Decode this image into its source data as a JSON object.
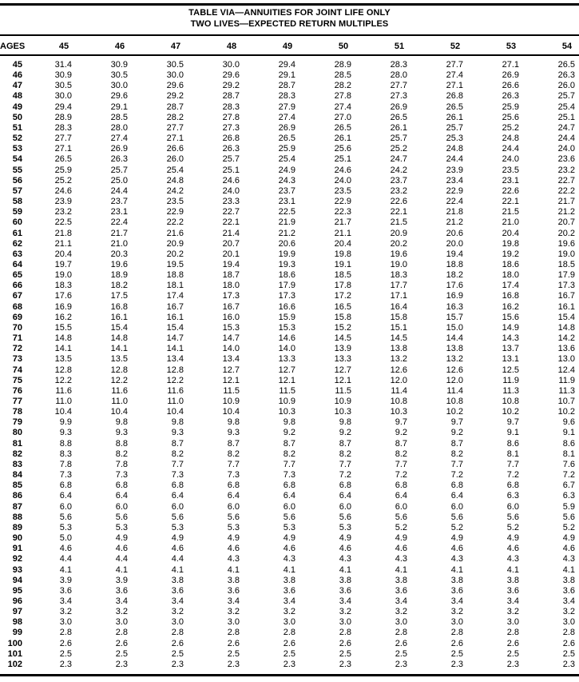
{
  "title": {
    "line1": "TABLE VIA—ANNUITIES FOR JOINT LIFE ONLY",
    "line2": "TWO LIVES—EXPECTED RETURN MULTIPLES"
  },
  "header": {
    "ages_label": "AGES",
    "columns": [
      "45",
      "46",
      "47",
      "48",
      "49",
      "50",
      "51",
      "52",
      "53",
      "54"
    ]
  },
  "rows": [
    {
      "age": "45",
      "values": [
        "31.4",
        "30.9",
        "30.5",
        "30.0",
        "29.4",
        "28.9",
        "28.3",
        "27.7",
        "27.1",
        "26.5"
      ]
    },
    {
      "age": "46",
      "values": [
        "30.9",
        "30.5",
        "30.0",
        "29.6",
        "29.1",
        "28.5",
        "28.0",
        "27.4",
        "26.9",
        "26.3"
      ]
    },
    {
      "age": "47",
      "values": [
        "30.5",
        "30.0",
        "29.6",
        "29.2",
        "28.7",
        "28.2",
        "27.7",
        "27.1",
        "26.6",
        "26.0"
      ]
    },
    {
      "age": "48",
      "values": [
        "30.0",
        "29.6",
        "29.2",
        "28.7",
        "28.3",
        "27.8",
        "27.3",
        "26.8",
        "26.3",
        "25.7"
      ]
    },
    {
      "age": "49",
      "values": [
        "29.4",
        "29.1",
        "28.7",
        "28.3",
        "27.9",
        "27.4",
        "26.9",
        "26.5",
        "25.9",
        "25.4"
      ]
    },
    {
      "age": "50",
      "values": [
        "28.9",
        "28.5",
        "28.2",
        "27.8",
        "27.4",
        "27.0",
        "26.5",
        "26.1",
        "25.6",
        "25.1"
      ]
    },
    {
      "age": "51",
      "values": [
        "28.3",
        "28.0",
        "27.7",
        "27.3",
        "26.9",
        "26.5",
        "26.1",
        "25.7",
        "25.2",
        "24.7"
      ]
    },
    {
      "age": "52",
      "values": [
        "27.7",
        "27.4",
        "27.1",
        "26.8",
        "26.5",
        "26.1",
        "25.7",
        "25.3",
        "24.8",
        "24.4"
      ]
    },
    {
      "age": "53",
      "values": [
        "27.1",
        "26.9",
        "26.6",
        "26.3",
        "25.9",
        "25.6",
        "25.2",
        "24.8",
        "24.4",
        "24.0"
      ]
    },
    {
      "age": "54",
      "values": [
        "26.5",
        "26.3",
        "26.0",
        "25.7",
        "25.4",
        "25.1",
        "24.7",
        "24.4",
        "24.0",
        "23.6"
      ]
    },
    {
      "age": "55",
      "values": [
        "25.9",
        "25.7",
        "25.4",
        "25.1",
        "24.9",
        "24.6",
        "24.2",
        "23.9",
        "23.5",
        "23.2"
      ]
    },
    {
      "age": "56",
      "values": [
        "25.2",
        "25.0",
        "24.8",
        "24.6",
        "24.3",
        "24.0",
        "23.7",
        "23.4",
        "23.1",
        "22.7"
      ]
    },
    {
      "age": "57",
      "values": [
        "24.6",
        "24.4",
        "24.2",
        "24.0",
        "23.7",
        "23.5",
        "23.2",
        "22.9",
        "22.6",
        "22.2"
      ]
    },
    {
      "age": "58",
      "values": [
        "23.9",
        "23.7",
        "23.5",
        "23.3",
        "23.1",
        "22.9",
        "22.6",
        "22.4",
        "22.1",
        "21.7"
      ]
    },
    {
      "age": "59",
      "values": [
        "23.2",
        "23.1",
        "22.9",
        "22.7",
        "22.5",
        "22.3",
        "22.1",
        "21.8",
        "21.5",
        "21.2"
      ]
    },
    {
      "age": "60",
      "values": [
        "22.5",
        "22.4",
        "22.2",
        "22.1",
        "21.9",
        "21.7",
        "21.5",
        "21.2",
        "21.0",
        "20.7"
      ]
    },
    {
      "age": "61",
      "values": [
        "21.8",
        "21.7",
        "21.6",
        "21.4",
        "21.2",
        "21.1",
        "20.9",
        "20.6",
        "20.4",
        "20.2"
      ]
    },
    {
      "age": "62",
      "values": [
        "21.1",
        "21.0",
        "20.9",
        "20.7",
        "20.6",
        "20.4",
        "20.2",
        "20.0",
        "19.8",
        "19.6"
      ]
    },
    {
      "age": "63",
      "values": [
        "20.4",
        "20.3",
        "20.2",
        "20.1",
        "19.9",
        "19.8",
        "19.6",
        "19.4",
        "19.2",
        "19.0"
      ]
    },
    {
      "age": "64",
      "values": [
        "19.7",
        "19.6",
        "19.5",
        "19.4",
        "19.3",
        "19.1",
        "19.0",
        "18.8",
        "18.6",
        "18.5"
      ]
    },
    {
      "age": "65",
      "values": [
        "19.0",
        "18.9",
        "18.8",
        "18.7",
        "18.6",
        "18.5",
        "18.3",
        "18.2",
        "18.0",
        "17.9"
      ]
    },
    {
      "age": "66",
      "values": [
        "18.3",
        "18.2",
        "18.1",
        "18.0",
        "17.9",
        "17.8",
        "17.7",
        "17.6",
        "17.4",
        "17.3"
      ]
    },
    {
      "age": "67",
      "values": [
        "17.6",
        "17.5",
        "17.4",
        "17.3",
        "17.3",
        "17.2",
        "17.1",
        "16.9",
        "16.8",
        "16.7"
      ]
    },
    {
      "age": "68",
      "values": [
        "16.9",
        "16.8",
        "16.7",
        "16.7",
        "16.6",
        "16.5",
        "16.4",
        "16.3",
        "16.2",
        "16.1"
      ]
    },
    {
      "age": "69",
      "values": [
        "16.2",
        "16.1",
        "16.1",
        "16.0",
        "15.9",
        "15.8",
        "15.8",
        "15.7",
        "15.6",
        "15.4"
      ]
    },
    {
      "age": "70",
      "values": [
        "15.5",
        "15.4",
        "15.4",
        "15.3",
        "15.3",
        "15.2",
        "15.1",
        "15.0",
        "14.9",
        "14.8"
      ]
    },
    {
      "age": "71",
      "values": [
        "14.8",
        "14.8",
        "14.7",
        "14.7",
        "14.6",
        "14.5",
        "14.5",
        "14.4",
        "14.3",
        "14.2"
      ]
    },
    {
      "age": "72",
      "values": [
        "14.1",
        "14.1",
        "14.1",
        "14.0",
        "14.0",
        "13.9",
        "13.8",
        "13.8",
        "13.7",
        "13.6"
      ]
    },
    {
      "age": "73",
      "values": [
        "13.5",
        "13.5",
        "13.4",
        "13.4",
        "13.3",
        "13.3",
        "13.2",
        "13.2",
        "13.1",
        "13.0"
      ]
    },
    {
      "age": "74",
      "values": [
        "12.8",
        "12.8",
        "12.8",
        "12.7",
        "12.7",
        "12.7",
        "12.6",
        "12.6",
        "12.5",
        "12.4"
      ]
    },
    {
      "age": "75",
      "values": [
        "12.2",
        "12.2",
        "12.2",
        "12.1",
        "12.1",
        "12.1",
        "12.0",
        "12.0",
        "11.9",
        "11.9"
      ]
    },
    {
      "age": "76",
      "values": [
        "11.6",
        "11.6",
        "11.6",
        "11.5",
        "11.5",
        "11.5",
        "11.4",
        "11.4",
        "11.3",
        "11.3"
      ]
    },
    {
      "age": "77",
      "values": [
        "11.0",
        "11.0",
        "11.0",
        "10.9",
        "10.9",
        "10.9",
        "10.8",
        "10.8",
        "10.8",
        "10.7"
      ]
    },
    {
      "age": "78",
      "values": [
        "10.4",
        "10.4",
        "10.4",
        "10.4",
        "10.3",
        "10.3",
        "10.3",
        "10.2",
        "10.2",
        "10.2"
      ]
    },
    {
      "age": "79",
      "values": [
        "9.9",
        "9.8",
        "9.8",
        "9.8",
        "9.8",
        "9.8",
        "9.7",
        "9.7",
        "9.7",
        "9.6"
      ]
    },
    {
      "age": "80",
      "values": [
        "9.3",
        "9.3",
        "9.3",
        "9.3",
        "9.2",
        "9.2",
        "9.2",
        "9.2",
        "9.1",
        "9.1"
      ]
    },
    {
      "age": "81",
      "values": [
        "8.8",
        "8.8",
        "8.7",
        "8.7",
        "8.7",
        "8.7",
        "8.7",
        "8.7",
        "8.6",
        "8.6"
      ]
    },
    {
      "age": "82",
      "values": [
        "8.3",
        "8.2",
        "8.2",
        "8.2",
        "8.2",
        "8.2",
        "8.2",
        "8.2",
        "8.1",
        "8.1"
      ]
    },
    {
      "age": "83",
      "values": [
        "7.8",
        "7.8",
        "7.7",
        "7.7",
        "7.7",
        "7.7",
        "7.7",
        "7.7",
        "7.7",
        "7.6"
      ]
    },
    {
      "age": "84",
      "values": [
        "7.3",
        "7.3",
        "7.3",
        "7.3",
        "7.3",
        "7.2",
        "7.2",
        "7.2",
        "7.2",
        "7.2"
      ]
    },
    {
      "age": "85",
      "values": [
        "6.8",
        "6.8",
        "6.8",
        "6.8",
        "6.8",
        "6.8",
        "6.8",
        "6.8",
        "6.8",
        "6.7"
      ]
    },
    {
      "age": "86",
      "values": [
        "6.4",
        "6.4",
        "6.4",
        "6.4",
        "6.4",
        "6.4",
        "6.4",
        "6.4",
        "6.3",
        "6.3"
      ]
    },
    {
      "age": "87",
      "values": [
        "6.0",
        "6.0",
        "6.0",
        "6.0",
        "6.0",
        "6.0",
        "6.0",
        "6.0",
        "6.0",
        "5.9"
      ]
    },
    {
      "age": "88",
      "values": [
        "5.6",
        "5.6",
        "5.6",
        "5.6",
        "5.6",
        "5.6",
        "5.6",
        "5.6",
        "5.6",
        "5.6"
      ]
    },
    {
      "age": "89",
      "values": [
        "5.3",
        "5.3",
        "5.3",
        "5.3",
        "5.3",
        "5.3",
        "5.2",
        "5.2",
        "5.2",
        "5.2"
      ]
    },
    {
      "age": "90",
      "values": [
        "5.0",
        "4.9",
        "4.9",
        "4.9",
        "4.9",
        "4.9",
        "4.9",
        "4.9",
        "4.9",
        "4.9"
      ]
    },
    {
      "age": "91",
      "values": [
        "4.6",
        "4.6",
        "4.6",
        "4.6",
        "4.6",
        "4.6",
        "4.6",
        "4.6",
        "4.6",
        "4.6"
      ]
    },
    {
      "age": "92",
      "values": [
        "4.4",
        "4.4",
        "4.4",
        "4.3",
        "4.3",
        "4.3",
        "4.3",
        "4.3",
        "4.3",
        "4.3"
      ]
    },
    {
      "age": "93",
      "values": [
        "4.1",
        "4.1",
        "4.1",
        "4.1",
        "4.1",
        "4.1",
        "4.1",
        "4.1",
        "4.1",
        "4.1"
      ]
    },
    {
      "age": "94",
      "values": [
        "3.9",
        "3.9",
        "3.8",
        "3.8",
        "3.8",
        "3.8",
        "3.8",
        "3.8",
        "3.8",
        "3.8"
      ]
    },
    {
      "age": "95",
      "values": [
        "3.6",
        "3.6",
        "3.6",
        "3.6",
        "3.6",
        "3.6",
        "3.6",
        "3.6",
        "3.6",
        "3.6"
      ]
    },
    {
      "age": "96",
      "values": [
        "3.4",
        "3.4",
        "3.4",
        "3.4",
        "3.4",
        "3.4",
        "3.4",
        "3.4",
        "3.4",
        "3.4"
      ]
    },
    {
      "age": "97",
      "values": [
        "3.2",
        "3.2",
        "3.2",
        "3.2",
        "3.2",
        "3.2",
        "3.2",
        "3.2",
        "3.2",
        "3.2"
      ]
    },
    {
      "age": "98",
      "values": [
        "3.0",
        "3.0",
        "3.0",
        "3.0",
        "3.0",
        "3.0",
        "3.0",
        "3.0",
        "3.0",
        "3.0"
      ]
    },
    {
      "age": "99",
      "values": [
        "2.8",
        "2.8",
        "2.8",
        "2.8",
        "2.8",
        "2.8",
        "2.8",
        "2.8",
        "2.8",
        "2.8"
      ]
    },
    {
      "age": "100",
      "values": [
        "2.6",
        "2.6",
        "2.6",
        "2.6",
        "2.6",
        "2.6",
        "2.6",
        "2.6",
        "2.6",
        "2.6"
      ]
    },
    {
      "age": "101",
      "values": [
        "2.5",
        "2.5",
        "2.5",
        "2.5",
        "2.5",
        "2.5",
        "2.5",
        "2.5",
        "2.5",
        "2.5"
      ]
    },
    {
      "age": "102",
      "values": [
        "2.3",
        "2.3",
        "2.3",
        "2.3",
        "2.3",
        "2.3",
        "2.3",
        "2.3",
        "2.3",
        "2.3"
      ]
    }
  ]
}
